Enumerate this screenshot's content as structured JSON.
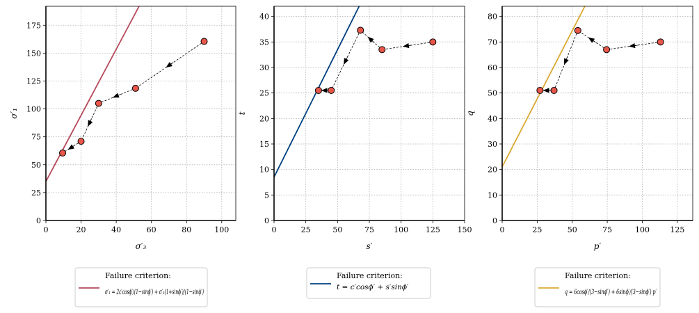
{
  "chart_data": [
    {
      "type": "line",
      "xlabel": "σ′₃",
      "ylabel": "σ′₁",
      "xlim": [
        0,
        108
      ],
      "ylim": [
        0,
        192
      ],
      "xticks": [
        "0",
        "20",
        "40",
        "60",
        "80",
        "100"
      ],
      "yticks": [
        "0",
        "25",
        "50",
        "75",
        "100",
        "125",
        "150",
        "175"
      ],
      "xtick_values": [
        0,
        20,
        40,
        60,
        80,
        100
      ],
      "ytick_values": [
        0,
        25,
        50,
        75,
        100,
        125,
        150,
        175
      ],
      "grid": true,
      "criterion": {
        "name": "Failure criterion:",
        "formula": "σ′₁ = 2c′cosϕ′/(1−sinϕ′) + σ′₃(1+sinϕ′)/(1−sinϕ′)",
        "color": "#b5485a",
        "x": [
          0,
          53
        ],
        "y": [
          35,
          192
        ]
      },
      "path": {
        "x": [
          90,
          51,
          30,
          20,
          9.5
        ],
        "y": [
          160.5,
          118.5,
          105,
          71,
          60.5
        ]
      },
      "legend_position": "below"
    },
    {
      "type": "line",
      "xlabel": "s′",
      "ylabel": "t",
      "xlim": [
        0,
        150
      ],
      "ylim": [
        0,
        42
      ],
      "xticks": [
        "0",
        "25",
        "50",
        "75",
        "100",
        "125",
        "150"
      ],
      "yticks": [
        "0",
        "5",
        "10",
        "15",
        "20",
        "25",
        "30",
        "35",
        "40"
      ],
      "xtick_values": [
        0,
        25,
        50,
        75,
        100,
        125,
        150
      ],
      "ytick_values": [
        0,
        5,
        10,
        15,
        20,
        25,
        30,
        35,
        40
      ],
      "grid": true,
      "criterion": {
        "name": "Failure criterion:",
        "formula": "t = c′cosϕ′ + s′sinϕ′",
        "color": "#003f7f",
        "x": [
          0,
          67
        ],
        "y": [
          8.5,
          42
        ]
      },
      "path": {
        "x": [
          125,
          85,
          68,
          45,
          35
        ],
        "y": [
          35,
          33.5,
          37.3,
          25.5,
          25.5
        ]
      },
      "legend_position": "below"
    },
    {
      "type": "line",
      "xlabel": "p′",
      "ylabel": "q",
      "xlim": [
        0,
        136
      ],
      "ylim": [
        0,
        84
      ],
      "xticks": [
        "0",
        "25",
        "50",
        "75",
        "100",
        "125"
      ],
      "yticks": [
        "0",
        "10",
        "20",
        "30",
        "40",
        "50",
        "60",
        "70",
        "80"
      ],
      "xtick_values": [
        0,
        25,
        50,
        75,
        100,
        125
      ],
      "ytick_values": [
        0,
        10,
        20,
        30,
        40,
        50,
        60,
        70,
        80
      ],
      "grid": true,
      "criterion": {
        "name": "Failure criterion:",
        "formula": "q = 6cosϕ′/(3−sinϕ′) + 6sinϕ′/(3−sinϕ′) p′",
        "color": "#d9a830",
        "x": [
          0,
          59
        ],
        "y": [
          21,
          84
        ]
      },
      "path": {
        "x": [
          113,
          74.5,
          54,
          37,
          27
        ],
        "y": [
          70,
          67,
          74.5,
          51,
          51
        ]
      },
      "legend_position": "below"
    }
  ],
  "style": {
    "point_fill": "#e8574a",
    "point_edge": "#000000",
    "grid_color": "#b0b0b0"
  }
}
